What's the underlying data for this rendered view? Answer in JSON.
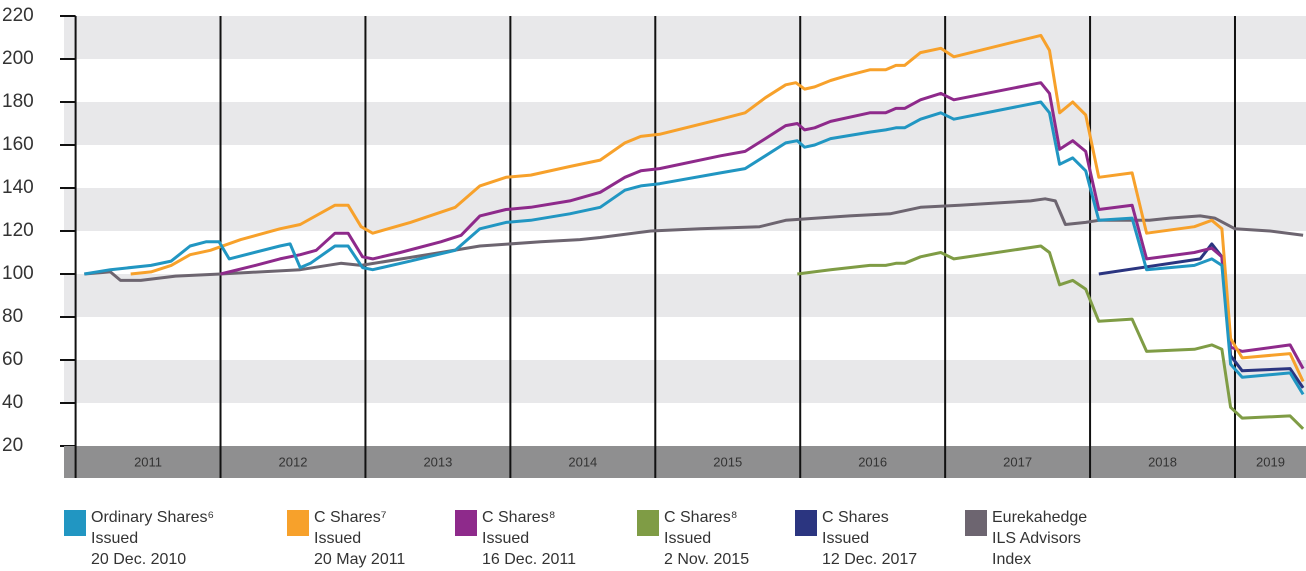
{
  "chart_data": {
    "type": "line",
    "xlim": [
      2010.92,
      2019.49
    ],
    "xticks": [
      {
        "value": 2011,
        "label": "2011"
      },
      {
        "value": 2012,
        "label": "2012"
      },
      {
        "value": 2013,
        "label": "2013"
      },
      {
        "value": 2014,
        "label": "2014"
      },
      {
        "value": 2015,
        "label": "2015"
      },
      {
        "value": 2016,
        "label": "2016"
      },
      {
        "value": 2017,
        "label": "2017"
      },
      {
        "value": 2018,
        "label": "2018"
      },
      {
        "value": 2019,
        "label": "2019"
      }
    ],
    "ylim": [
      20,
      220
    ],
    "yticks": [
      20,
      40,
      60,
      80,
      100,
      120,
      140,
      160,
      180,
      200,
      220
    ],
    "grid": true,
    "legend": "bottom",
    "series": [
      {
        "name": "Ordinary Shares⁶\nIssued\n20 Dec. 2010",
        "color": "#2196c2",
        "x": [
          2011.06,
          2011.24,
          2011.52,
          2011.66,
          2011.79,
          2011.9,
          2011.99,
          2012.06,
          2012.41,
          2012.48,
          2012.55,
          2012.62,
          2012.79,
          2012.88,
          2012.98,
          2013.05,
          2013.31,
          2013.62,
          2013.79,
          2013.97,
          2014.14,
          2014.41,
          2014.62,
          2014.79,
          2014.9,
          2015.03,
          2015.45,
          2015.62,
          2015.76,
          2015.9,
          2015.98,
          2016.03,
          2016.1,
          2016.21,
          2016.48,
          2016.59,
          2016.66,
          2016.72,
          2016.83,
          2016.97,
          2017.06,
          2017.66,
          2017.72,
          2017.79,
          2017.88,
          2017.97,
          2018.06,
          2018.29,
          2018.39,
          2018.72,
          2018.84,
          2018.91,
          2018.97,
          2019.05,
          2019.38,
          2019.47
        ],
        "values": [
          100,
          102,
          104,
          106,
          113,
          115,
          115,
          107,
          113,
          114,
          103,
          105,
          113,
          113,
          103,
          102,
          106,
          111,
          121,
          124,
          125,
          128,
          131,
          139,
          141,
          142,
          147,
          149,
          155,
          161,
          162,
          159,
          160,
          163,
          166,
          167,
          168,
          168,
          172,
          175,
          172,
          180,
          175,
          151,
          154,
          148,
          125,
          126,
          102,
          104,
          107,
          104,
          58,
          52,
          54,
          44
        ]
      },
      {
        "name": "C Shares⁷\nIssued\n20 May 2011",
        "color": "#f7a12b",
        "x": [
          2011.38,
          2011.52,
          2011.66,
          2011.79,
          2011.93,
          2012.14,
          2012.41,
          2012.55,
          2012.79,
          2012.88,
          2012.97,
          2013.05,
          2013.31,
          2013.62,
          2013.79,
          2013.97,
          2014.14,
          2014.41,
          2014.62,
          2014.79,
          2014.9,
          2015.03,
          2015.45,
          2015.62,
          2015.76,
          2015.9,
          2015.97,
          2016.03,
          2016.1,
          2016.21,
          2016.31,
          2016.48,
          2016.59,
          2016.66,
          2016.72,
          2016.83,
          2016.97,
          2017.06,
          2017.66,
          2017.72,
          2017.79,
          2017.88,
          2017.97,
          2018.06,
          2018.29,
          2018.39,
          2018.72,
          2018.84,
          2018.91,
          2018.97,
          2019.05,
          2019.38,
          2019.47
        ],
        "values": [
          100,
          101,
          104,
          109,
          111,
          116,
          121,
          123,
          132,
          132,
          122,
          119,
          124,
          131,
          141,
          145,
          146,
          150,
          153,
          161,
          164,
          165,
          172,
          175,
          182,
          188,
          189,
          186,
          187,
          190,
          192,
          195,
          195,
          197,
          197,
          203,
          205,
          201,
          211,
          204,
          175,
          180,
          174,
          145,
          147,
          119,
          122,
          125,
          121,
          70,
          61,
          63,
          50
        ]
      },
      {
        "name": "C Shares⁸\nIssued\n16 Dec. 2011",
        "color": "#8e2a8b",
        "x": [
          2012.0,
          2012.24,
          2012.41,
          2012.55,
          2012.66,
          2012.79,
          2012.88,
          2012.98,
          2013.05,
          2013.24,
          2013.52,
          2013.66,
          2013.79,
          2013.97,
          2014.14,
          2014.41,
          2014.62,
          2014.79,
          2014.9,
          2015.03,
          2015.45,
          2015.62,
          2015.76,
          2015.9,
          2015.98,
          2016.03,
          2016.1,
          2016.21,
          2016.48,
          2016.59,
          2016.66,
          2016.72,
          2016.83,
          2016.97,
          2017.06,
          2017.66,
          2017.72,
          2017.79,
          2017.88,
          2017.97,
          2018.06,
          2018.29,
          2018.39,
          2018.72,
          2018.84,
          2018.91,
          2018.97,
          2019.05,
          2019.38,
          2019.47
        ],
        "values": [
          100,
          104,
          107,
          109,
          111,
          119,
          119,
          108,
          107,
          110,
          115,
          118,
          127,
          130,
          131,
          134,
          138,
          145,
          148,
          149,
          155,
          157,
          163,
          169,
          170,
          167,
          168,
          171,
          175,
          175,
          177,
          177,
          181,
          184,
          181,
          189,
          184,
          158,
          162,
          157,
          130,
          132,
          107,
          110,
          112,
          108,
          66,
          64,
          67,
          56
        ]
      },
      {
        "name": "C Shares⁸\nIssued\n2 Nov. 2015",
        "color": "#7f9c45",
        "x": [
          2015.98,
          2016.21,
          2016.48,
          2016.59,
          2016.66,
          2016.72,
          2016.83,
          2016.97,
          2017.06,
          2017.66,
          2017.72,
          2017.79,
          2017.88,
          2017.97,
          2018.06,
          2018.29,
          2018.39,
          2018.72,
          2018.84,
          2018.91,
          2018.97,
          2019.05,
          2019.38,
          2019.47
        ],
        "values": [
          100,
          102,
          104,
          104,
          105,
          105,
          108,
          110,
          107,
          113,
          110,
          95,
          97,
          93,
          78,
          79,
          64,
          65,
          67,
          65,
          38,
          33,
          34,
          28
        ]
      },
      {
        "name": "C Shares\nIssued\n12 Dec. 2017",
        "color": "#2b3580",
        "x": [
          2018.06,
          2018.76,
          2018.84,
          2018.91,
          2018.97,
          2019.05,
          2019.38,
          2019.47
        ],
        "values": [
          100,
          107,
          114,
          108,
          62,
          55,
          56,
          47
        ]
      },
      {
        "name": "Eurekahedge\nILS Advisors\nIndex",
        "color": "#6d6570",
        "x": [
          2011.06,
          2011.24,
          2011.31,
          2011.45,
          2011.69,
          2012.0,
          2012.55,
          2012.83,
          2012.97,
          2013.52,
          2013.79,
          2014.21,
          2014.48,
          2014.62,
          2014.97,
          2015.31,
          2015.72,
          2015.9,
          2016.34,
          2016.62,
          2016.83,
          2017.1,
          2017.59,
          2017.69,
          2017.76,
          2017.83,
          2017.97,
          2018.06,
          2018.41,
          2018.55,
          2018.76,
          2018.86,
          2019.0,
          2019.24,
          2019.47
        ],
        "values": [
          100,
          101,
          97,
          97,
          99,
          100,
          102,
          105,
          104,
          110,
          113,
          115,
          116,
          117,
          120,
          121,
          122,
          125,
          127,
          128,
          131,
          132,
          134,
          135,
          134,
          123,
          124,
          125,
          125,
          126,
          127,
          126,
          121,
          120,
          118
        ]
      }
    ]
  }
}
